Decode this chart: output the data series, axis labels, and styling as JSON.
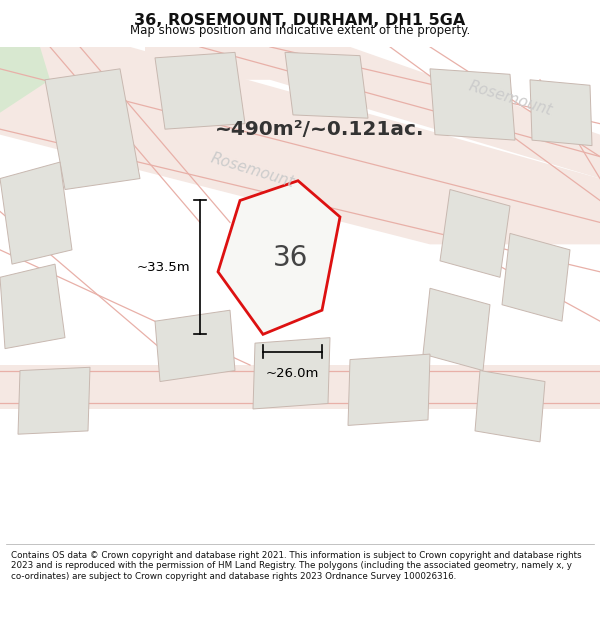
{
  "title": "36, ROSEMOUNT, DURHAM, DH1 5GA",
  "subtitle": "Map shows position and indicative extent of the property.",
  "footer": "Contains OS data © Crown copyright and database right 2021. This information is subject to Crown copyright and database rights 2023 and is reproduced with the permission of HM Land Registry. The polygons (including the associated geometry, namely x, y co-ordinates) are subject to Crown copyright and database rights 2023 Ordnance Survey 100026316.",
  "area_label": "~490m²/~0.121ac.",
  "plot_number": "36",
  "dim_width": "~26.0m",
  "dim_height": "~33.5m",
  "background_color": "#f7f7f5",
  "map_background": "#f7f7f5",
  "road_color": "#f5e8e3",
  "plot_fill": "#f0f0ec",
  "plot_outline": "#dd1111",
  "other_plots_fill": "#e2e2dc",
  "other_plots_outline": "#c8b8b0",
  "road_label_color": "#cccccc",
  "title_color": "#111111",
  "text_color": "#111111",
  "road_name_color": "#cccccc",
  "green_corner": "#d8e8d0"
}
